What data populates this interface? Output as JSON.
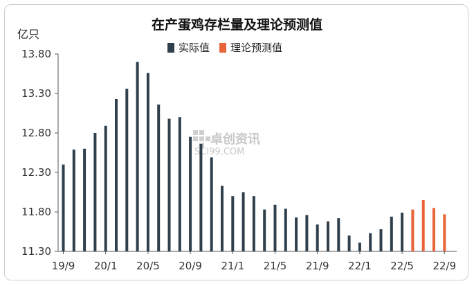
{
  "chart_data": {
    "type": "bar",
    "title": "在产蛋鸡存栏量及理论预测值",
    "unit": "亿只",
    "ylim": [
      11.3,
      13.8
    ],
    "yticks": [
      "13.80",
      "13.30",
      "12.80",
      "12.30",
      "11.80",
      "11.30"
    ],
    "ytick_values": [
      13.8,
      13.3,
      12.8,
      12.3,
      11.8,
      11.3
    ],
    "xtick_labels": [
      "19/9",
      "20/1",
      "20/5",
      "20/9",
      "21/1",
      "21/5",
      "21/9",
      "22/1",
      "22/5",
      "22/9"
    ],
    "legend_position": "top",
    "series": [
      {
        "name": "实际值",
        "color": "#2f3f4b",
        "values": [
          12.4,
          12.59,
          12.6,
          12.8,
          12.89,
          13.23,
          13.36,
          13.7,
          13.56,
          13.16,
          12.98,
          13.0,
          12.75,
          12.66,
          12.49,
          12.13,
          12.0,
          12.05,
          12.0,
          11.83,
          11.89,
          11.84,
          11.73,
          11.76,
          11.64,
          11.68,
          11.72,
          11.5,
          11.41,
          11.53,
          11.58,
          11.74,
          11.79
        ]
      },
      {
        "name": "理论预测值",
        "color": "#e8643a",
        "values": [
          11.83,
          11.95,
          11.85,
          11.77
        ]
      }
    ]
  },
  "watermark": {
    "brand": "卓创资讯",
    "site": "SCI99.COM"
  }
}
